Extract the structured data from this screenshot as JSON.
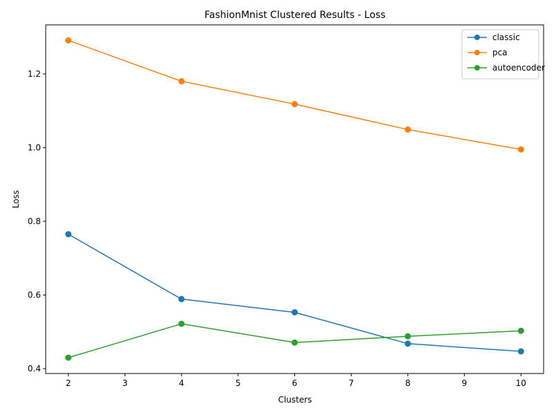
{
  "chart_data": {
    "type": "line",
    "title": "FashionMnist Clustered Results - Loss",
    "xlabel": "Clusters",
    "ylabel": "Loss",
    "x": [
      2,
      4,
      6,
      8,
      10
    ],
    "xlim": [
      1.6,
      10.4
    ],
    "ylim": [
      0.387,
      1.333
    ],
    "xticks": [
      2,
      3,
      4,
      5,
      6,
      7,
      8,
      9,
      10
    ],
    "yticks": [
      0.4,
      0.6,
      0.8,
      1.0,
      1.2
    ],
    "ytick_labels": [
      "0.4",
      "0.6",
      "0.8",
      "1.0",
      "1.2"
    ],
    "grid": false,
    "legend_position": "top-right",
    "series": [
      {
        "name": "classic",
        "color": "#1f77b4",
        "values": [
          0.765,
          0.589,
          0.553,
          0.468,
          0.447
        ]
      },
      {
        "name": "pca",
        "color": "#ff7f0e",
        "values": [
          1.291,
          1.18,
          1.118,
          1.049,
          0.995
        ]
      },
      {
        "name": "autoencoder",
        "color": "#2ca02c",
        "values": [
          0.43,
          0.522,
          0.471,
          0.488,
          0.503
        ]
      }
    ]
  }
}
